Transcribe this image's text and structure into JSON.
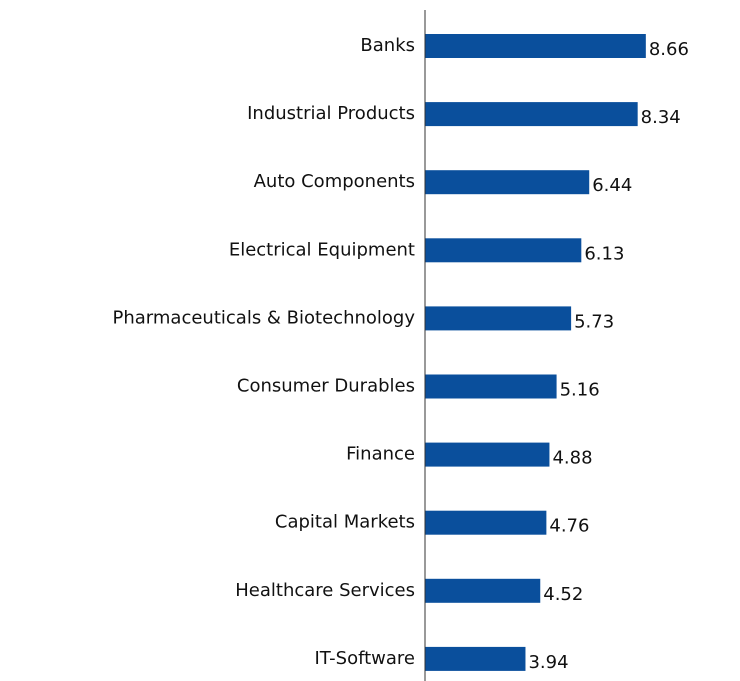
{
  "chart_data": {
    "type": "bar",
    "orientation": "horizontal",
    "categories": [
      "Banks",
      "Industrial Products",
      "Auto Components",
      "Electrical Equipment",
      "Pharmaceuticals & Biotechnology",
      "Consumer Durables",
      "Finance",
      "Capital Markets",
      "Healthcare Services",
      "IT-Software"
    ],
    "values": [
      8.66,
      8.34,
      6.44,
      6.13,
      5.73,
      5.16,
      4.88,
      4.76,
      4.52,
      3.94
    ],
    "value_labels": [
      "8.66",
      "8.34",
      "6.44",
      "6.13",
      "5.73",
      "5.16",
      "4.88",
      "4.76",
      "4.52",
      "3.94"
    ],
    "xlim": [
      0,
      10
    ],
    "grid": false,
    "bar_color": "#0A4F9C"
  }
}
